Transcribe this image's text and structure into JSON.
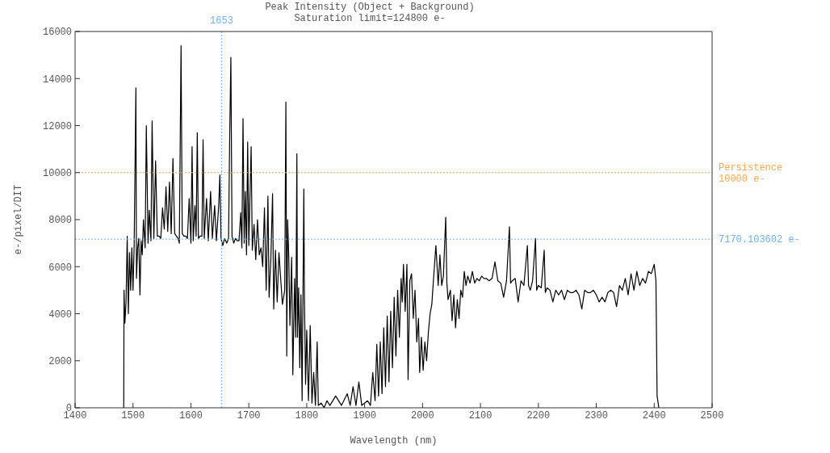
{
  "chart_data": {
    "type": "line",
    "title": "Peak Intensity (Object + Background)",
    "subtitle": "Saturation limit=124800 e-",
    "xlabel": "Wavelength (nm)",
    "ylabel": "e-/pixel/DIT",
    "xlim": [
      1400,
      2500
    ],
    "xticks": [
      1400,
      1500,
      1600,
      1700,
      1800,
      1900,
      2000,
      2100,
      2200,
      2300,
      2400,
      2500
    ],
    "ylim": [
      0,
      16000
    ],
    "yticks": [
      0,
      2000,
      4000,
      6000,
      8000,
      10000,
      12000,
      14000,
      16000
    ],
    "marker": "none",
    "line_style": "solid",
    "ref_lines": [
      {
        "axis": "y",
        "value": 10000,
        "label": "Persistence\n10000 e-",
        "color": "#ffa64d",
        "line_style": "dotted"
      },
      {
        "axis": "y",
        "value": 7170.103602,
        "label": "7170.103602 e-",
        "color": "#6fb0f0",
        "line_style": "dotted"
      },
      {
        "axis": "x",
        "value": 1653,
        "label": "1653",
        "color": "#6fb0f0",
        "line_style": "dotted"
      }
    ],
    "series": [
      {
        "color": "#000000",
        "x": [
          1484,
          1484.5,
          1486,
          1488,
          1490,
          1492,
          1494,
          1496,
          1498,
          1500,
          1502,
          1505,
          1506,
          1508,
          1510,
          1512,
          1514,
          1516,
          1518,
          1521,
          1523,
          1526,
          1528,
          1531,
          1533,
          1536,
          1539,
          1542,
          1545,
          1548,
          1551,
          1554,
          1557,
          1560,
          1563,
          1566,
          1569,
          1572,
          1575,
          1578,
          1580,
          1583,
          1585,
          1588,
          1591,
          1594,
          1597,
          1600,
          1602,
          1604,
          1607,
          1609,
          1611,
          1613,
          1616,
          1619,
          1621,
          1623,
          1627,
          1630,
          1634,
          1637,
          1641,
          1644,
          1648,
          1650,
          1652,
          1655,
          1658,
          1662,
          1665,
          1667,
          1669,
          1671,
          1674,
          1677,
          1680,
          1683,
          1686,
          1688,
          1690,
          1692,
          1694,
          1696,
          1698,
          1700,
          1704,
          1706,
          1709,
          1712,
          1715,
          1718,
          1721,
          1724,
          1727,
          1730,
          1733,
          1735,
          1738,
          1741,
          1743,
          1746,
          1749,
          1752,
          1755,
          1758,
          1762,
          1764,
          1765.5,
          1767,
          1769,
          1771,
          1774,
          1776,
          1779,
          1781,
          1783,
          1784,
          1786,
          1788,
          1790,
          1792,
          1795,
          1796,
          1798,
          1800,
          1803,
          1806,
          1809,
          1812,
          1815,
          1818,
          1820,
          1825,
          1830,
          1835,
          1840,
          1850,
          1860,
          1870,
          1875,
          1880,
          1885,
          1890,
          1895,
          1900,
          1905,
          1910,
          1914,
          1918,
          1921,
          1924,
          1927,
          1930,
          1933,
          1936,
          1939,
          1942,
          1945,
          1948,
          1951,
          1954,
          1957,
          1960,
          1963,
          1965,
          1967,
          1970,
          1973,
          1975,
          1978,
          1981,
          1984,
          1987,
          1990,
          1993,
          1995,
          1998,
          2001,
          2004,
          2007,
          2010,
          2013,
          2016,
          2019,
          2023,
          2027,
          2030,
          2033,
          2036,
          2040,
          2042,
          2044,
          2048,
          2051,
          2054,
          2057,
          2060,
          2063,
          2066,
          2069,
          2072,
          2075,
          2078,
          2082,
          2086,
          2090,
          2094,
          2098,
          2102,
          2106,
          2110,
          2115,
          2120,
          2125,
          2130,
          2135,
          2140,
          2145,
          2150,
          2152,
          2155,
          2160,
          2165,
          2170,
          2175,
          2181,
          2183,
          2186,
          2190,
          2195,
          2197,
          2200,
          2205,
          2210,
          2212,
          2215,
          2220,
          2225,
          2230,
          2235,
          2240,
          2245,
          2250,
          2255,
          2260,
          2265,
          2270,
          2275,
          2280,
          2285,
          2290,
          2295,
          2300,
          2305,
          2310,
          2315,
          2320,
          2325,
          2330,
          2335,
          2340,
          2345,
          2350,
          2355,
          2360,
          2365,
          2370,
          2375,
          2380,
          2385,
          2390,
          2395,
          2400,
          2403,
          2405,
          2408
        ],
        "values": [
          0,
          5000,
          3600,
          4500,
          7300,
          4000,
          6600,
          5000,
          6800,
          5000,
          6900,
          13600,
          5500,
          6800,
          7200,
          4800,
          7100,
          6500,
          8000,
          6800,
          12000,
          7000,
          8400,
          7100,
          12200,
          7200,
          10500,
          7300,
          7300,
          7200,
          8500,
          7600,
          9400,
          7500,
          9600,
          7400,
          10600,
          7400,
          7300,
          7200,
          7000,
          15400,
          7400,
          7300,
          7300,
          7200,
          8900,
          7000,
          11100,
          7100,
          8600,
          7300,
          11700,
          7200,
          7300,
          7300,
          11400,
          7200,
          8900,
          7100,
          9200,
          7200,
          8600,
          7100,
          8600,
          9900,
          7200,
          6900,
          7200,
          7000,
          7200,
          11600,
          14900,
          7300,
          7000,
          7200,
          7100,
          7100,
          8300,
          6800,
          12300,
          7000,
          9200,
          6500,
          11300,
          6900,
          11100,
          6700,
          7800,
          6300,
          8000,
          6500,
          6800,
          6000,
          8500,
          5000,
          9000,
          4700,
          6300,
          9100,
          4200,
          6700,
          4500,
          6600,
          5500,
          4400,
          5000,
          13000,
          2200,
          8000,
          6400,
          3500,
          6400,
          1400,
          5500,
          3000,
          10800,
          3000,
          5100,
          1700,
          4800,
          300,
          9300,
          4800,
          1000,
          3300,
          300,
          3500,
          200,
          1500,
          100,
          2800,
          100,
          200,
          0,
          300,
          100,
          500,
          100,
          600,
          100,
          900,
          100,
          1100,
          100,
          200,
          300,
          100,
          1500,
          300,
          2700,
          500,
          2800,
          600,
          3400,
          900,
          3900,
          1100,
          4100,
          1700,
          4700,
          2200,
          5000,
          3000,
          5500,
          4500,
          6100,
          4100,
          6100,
          1200,
          5400,
          5700,
          3800,
          5000,
          2800,
          3800,
          1500,
          3000,
          1600,
          2800,
          2000,
          3200,
          4000,
          4400,
          5500,
          6900,
          5200,
          6500,
          5200,
          5600,
          8100,
          5300,
          4600,
          5000,
          3700,
          4800,
          3400,
          4600,
          3800,
          5000,
          4700,
          5800,
          5200,
          5600,
          5300,
          5800,
          5300,
          5500,
          5400,
          5600,
          5500,
          5500,
          5400,
          5500,
          6200,
          5400,
          5300,
          4700,
          5400,
          7700,
          5300,
          5400,
          5500,
          4500,
          5400,
          5200,
          6900,
          5200,
          5000,
          5400,
          7200,
          5000,
          5200,
          5100,
          6700,
          4900,
          5100,
          5000,
          4500,
          5000,
          4800,
          5000,
          4600,
          5000,
          4900,
          4900,
          5000,
          4800,
          4200,
          5000,
          4900,
          4900,
          5000,
          4800,
          4500,
          4700,
          4500,
          4900,
          5000,
          4900,
          4300,
          5200,
          5000,
          5500,
          4800,
          5700,
          5000,
          5800,
          5200,
          5500,
          5300,
          5800,
          5700,
          6100,
          5400,
          500,
          0
        ]
      }
    ]
  }
}
